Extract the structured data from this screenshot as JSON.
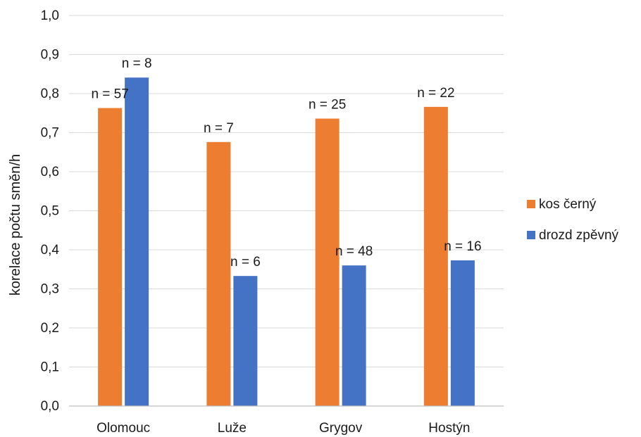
{
  "chart_data": {
    "type": "bar",
    "categories": [
      "Olomouc",
      "Luže",
      "Grygov",
      "Hostýn"
    ],
    "series": [
      {
        "name": "kos černý",
        "color": "#ED7D31",
        "values": [
          0.763,
          0.676,
          0.736,
          0.766
        ],
        "labels": [
          "n = 57",
          "n = 7",
          "n = 25",
          "n = 22"
        ]
      },
      {
        "name": "drozd zpěvný",
        "color": "#4472C4",
        "values": [
          0.841,
          0.333,
          0.36,
          0.373
        ],
        "labels": [
          "n = 8",
          "n = 6",
          "n = 48",
          "n = 16"
        ]
      }
    ],
    "ylabel": "korelace počtu směn/h",
    "xlabel": "",
    "ylim": [
      0,
      1.0
    ],
    "yticks": [
      "0,0",
      "0,1",
      "0,2",
      "0,3",
      "0,4",
      "0,5",
      "0,6",
      "0,7",
      "0,8",
      "0,9",
      "1,0"
    ],
    "grid": true,
    "legend_position": "right"
  }
}
